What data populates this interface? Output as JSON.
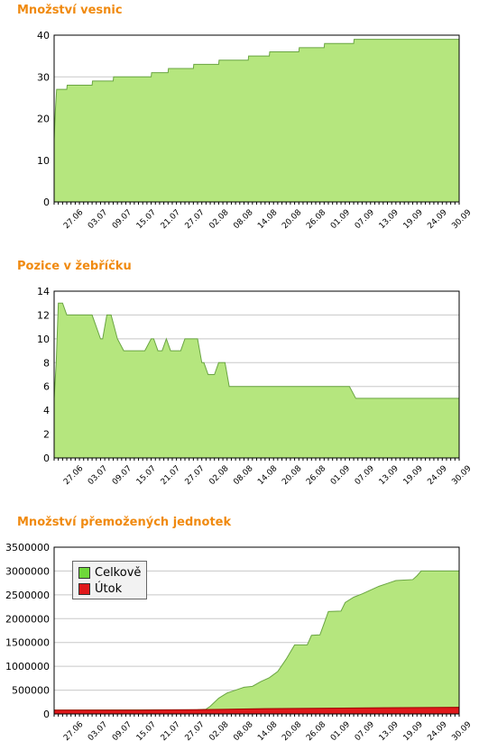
{
  "colors": {
    "title": "#f08a10",
    "fill": "#b5e67e",
    "stroke": "#6aa542",
    "red": "#e0191b",
    "grid": "#c8c8c8"
  },
  "dates": [
    "27.06",
    "03.07",
    "09.07",
    "15.07",
    "21.07",
    "27.07",
    "02.08",
    "08.08",
    "14.08",
    "20.08",
    "26.08",
    "01.09",
    "07.09",
    "13.09",
    "19.09",
    "24.09",
    "30.09"
  ],
  "chart_data": [
    {
      "title": "Množství vesnic",
      "type": "area",
      "ylim": [
        0,
        40
      ],
      "yticks": [
        "0",
        "10",
        "20",
        "30",
        "40"
      ],
      "ytick_values": [
        0,
        10,
        20,
        30,
        40
      ],
      "grid": true,
      "x_range": [
        0,
        96
      ],
      "series": [
        {
          "color": "fill",
          "points": [
            [
              0,
              15
            ],
            [
              0.3,
              22
            ],
            [
              0.6,
              27
            ],
            [
              1,
              27
            ],
            [
              3,
              27
            ],
            [
              3.1,
              28
            ],
            [
              9,
              28
            ],
            [
              9.1,
              29
            ],
            [
              14,
              29
            ],
            [
              14.1,
              30
            ],
            [
              23,
              30
            ],
            [
              23.1,
              31
            ],
            [
              27,
              31
            ],
            [
              27.1,
              32
            ],
            [
              33,
              32
            ],
            [
              33.1,
              33
            ],
            [
              39,
              33
            ],
            [
              39.1,
              34
            ],
            [
              46,
              34
            ],
            [
              46.1,
              35
            ],
            [
              51,
              35
            ],
            [
              51.1,
              36
            ],
            [
              58,
              36
            ],
            [
              58.1,
              37
            ],
            [
              64,
              37
            ],
            [
              64.1,
              38
            ],
            [
              71,
              38
            ],
            [
              71.1,
              39
            ],
            [
              96,
              39
            ]
          ]
        }
      ]
    },
    {
      "title": "Pozice v žebříčku",
      "type": "area",
      "ylim": [
        0,
        14
      ],
      "yticks": [
        "0",
        "2",
        "4",
        "6",
        "8",
        "10",
        "12",
        "14"
      ],
      "ytick_values": [
        0,
        2,
        4,
        6,
        8,
        10,
        12,
        14
      ],
      "grid": true,
      "x_range": [
        0,
        96
      ],
      "series": [
        {
          "color": "fill",
          "points": [
            [
              0,
              5
            ],
            [
              0.5,
              8
            ],
            [
              1,
              13
            ],
            [
              2,
              13
            ],
            [
              3,
              12
            ],
            [
              9,
              12
            ],
            [
              11,
              10
            ],
            [
              11.5,
              10
            ],
            [
              12.5,
              12
            ],
            [
              13.5,
              12
            ],
            [
              15,
              10
            ],
            [
              16.5,
              9
            ],
            [
              21.5,
              9
            ],
            [
              23,
              10
            ],
            [
              23.6,
              10
            ],
            [
              24.6,
              9
            ],
            [
              25.6,
              9
            ],
            [
              26.6,
              10
            ],
            [
              27.6,
              9
            ],
            [
              30,
              9
            ],
            [
              31,
              10
            ],
            [
              34,
              10
            ],
            [
              35,
              8
            ],
            [
              35.5,
              8
            ],
            [
              36.5,
              7
            ],
            [
              38,
              7
            ],
            [
              39,
              8
            ],
            [
              40.5,
              8
            ],
            [
              41.5,
              6
            ],
            [
              70,
              6
            ],
            [
              71.5,
              5
            ],
            [
              96,
              5
            ]
          ]
        }
      ]
    },
    {
      "title": "Množství přemožených jednotek",
      "type": "area",
      "ylim": [
        0,
        3500000
      ],
      "yticks": [
        "0",
        "500000",
        "1000000",
        "1500000",
        "2000000",
        "2500000",
        "3000000",
        "3500000"
      ],
      "ytick_values": [
        0,
        500000,
        1000000,
        1500000,
        2000000,
        2500000,
        3000000,
        3500000
      ],
      "grid": true,
      "x_range": [
        0,
        96
      ],
      "legend": {
        "position": "top-left",
        "entries": [
          "Celkově",
          "Útok"
        ]
      },
      "series": [
        {
          "name": "Celkově",
          "color": "fill",
          "points": [
            [
              0,
              80000
            ],
            [
              34,
              90000
            ],
            [
              36,
              100000
            ],
            [
              37,
              160000
            ],
            [
              39,
              330000
            ],
            [
              41,
              440000
            ],
            [
              43,
              500000
            ],
            [
              45,
              560000
            ],
            [
              47,
              580000
            ],
            [
              49,
              680000
            ],
            [
              51,
              760000
            ],
            [
              53,
              890000
            ],
            [
              55,
              1150000
            ],
            [
              57,
              1450000
            ],
            [
              60,
              1450000
            ],
            [
              61,
              1650000
            ],
            [
              63,
              1660000
            ],
            [
              64,
              1900000
            ],
            [
              65,
              2150000
            ],
            [
              68,
              2160000
            ],
            [
              69,
              2340000
            ],
            [
              71,
              2450000
            ],
            [
              73,
              2520000
            ],
            [
              75,
              2600000
            ],
            [
              77,
              2680000
            ],
            [
              79,
              2740000
            ],
            [
              81,
              2800000
            ],
            [
              85,
              2820000
            ],
            [
              86,
              2900000
            ],
            [
              87,
              3000000
            ],
            [
              96,
              3000000
            ]
          ]
        },
        {
          "name": "Útok",
          "color": "red",
          "points": [
            [
              0,
              80000
            ],
            [
              20,
              80000
            ],
            [
              34,
              90000
            ],
            [
              50,
              110000
            ],
            [
              65,
              120000
            ],
            [
              78,
              130000
            ],
            [
              96,
              140000
            ]
          ]
        }
      ]
    }
  ]
}
